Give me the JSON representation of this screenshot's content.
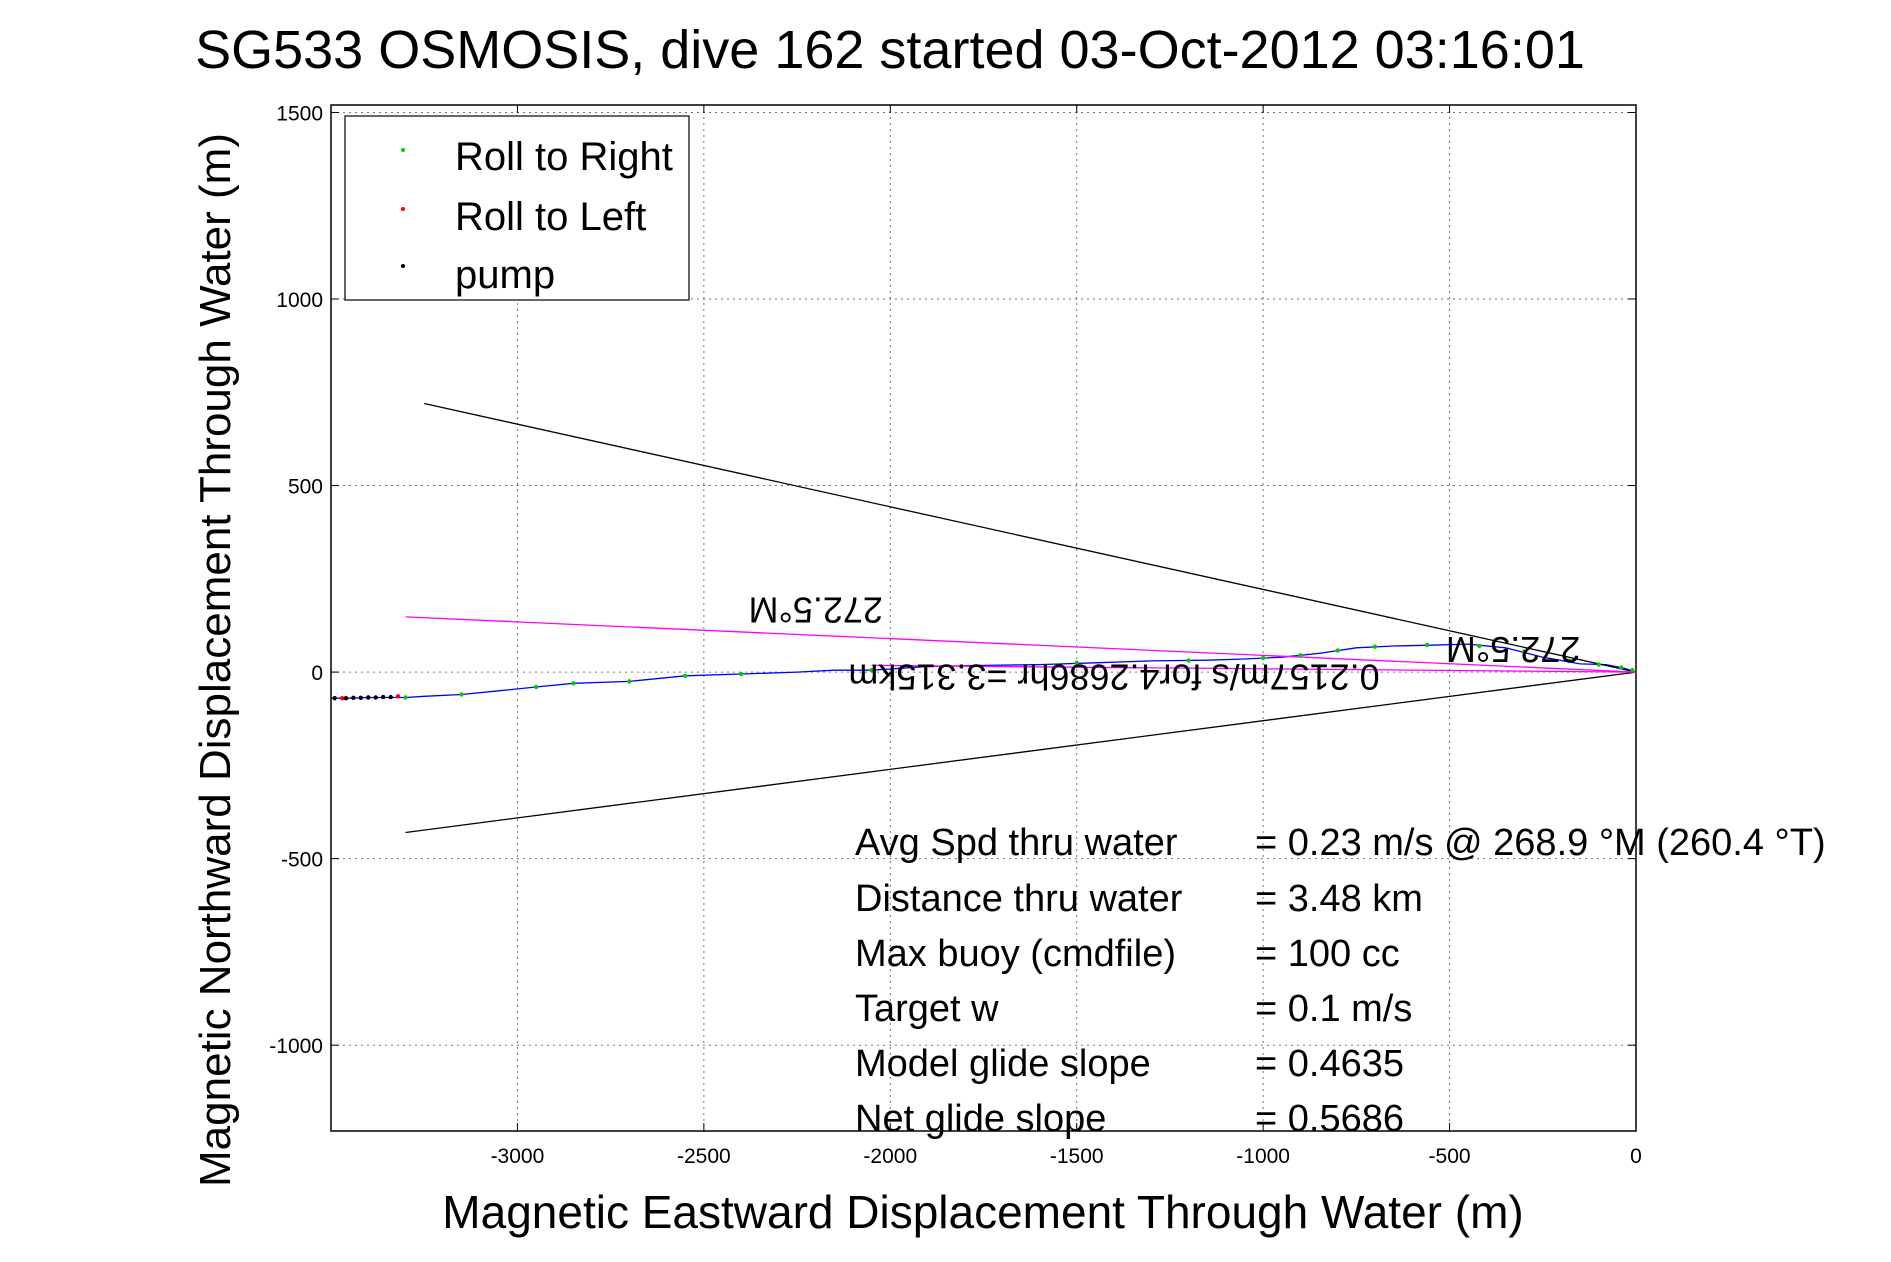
{
  "chart_data": {
    "type": "line",
    "title": "SG533 OSMOSIS, dive 162 started 03-Oct-2012 03:16:01",
    "xlabel": "Magnetic Eastward Displacement Through Water (m)",
    "ylabel": "Magnetic Northward Displacement Through Water (m)",
    "xlim": [
      -3500,
      0
    ],
    "ylim": [
      -1230,
      1520
    ],
    "xticks": [
      -3000,
      -2500,
      -2000,
      -1500,
      -1000,
      -500,
      0
    ],
    "yticks": [
      -1000,
      -500,
      0,
      500,
      1000,
      1500
    ],
    "grid": true,
    "legend_position": "top-left",
    "legend": [
      {
        "label": "Roll to Right",
        "color": "#00cc00"
      },
      {
        "label": "Roll to Left",
        "color": "#ff0000"
      },
      {
        "label": "pump",
        "color": "#000000"
      }
    ],
    "series": [
      {
        "role": "track",
        "color": "#0000ff",
        "x": [
          0,
          -30,
          -80,
          -150,
          -250,
          -350,
          -450,
          -550,
          -650,
          -750,
          -850,
          -950,
          -1050,
          -1150,
          -1300,
          -1450,
          -1600,
          -1750,
          -1900,
          -2050,
          -2150,
          -2250,
          -2400,
          -2550,
          -2700,
          -2850,
          -2950,
          -3050,
          -3150,
          -3250,
          -3300,
          -3350,
          -3400,
          -3450,
          -3500
        ],
        "y": [
          0,
          10,
          20,
          22,
          40,
          65,
          75,
          72,
          70,
          65,
          50,
          40,
          35,
          32,
          30,
          25,
          20,
          18,
          15,
          5,
          5,
          0,
          -5,
          -10,
          -25,
          -30,
          -40,
          -50,
          -60,
          -65,
          -68,
          -68,
          -68,
          -70,
          -70
        ]
      },
      {
        "role": "boundary",
        "color": "#000000",
        "x": [
          0,
          -3250
        ],
        "y": [
          0,
          720
        ]
      },
      {
        "role": "boundary",
        "color": "#000000",
        "x": [
          0,
          -3300
        ],
        "y": [
          0,
          -430
        ]
      },
      {
        "role": "heading",
        "color": "#ff00ff",
        "x": [
          0,
          -3300
        ],
        "y": [
          0,
          148
        ]
      },
      {
        "role": "heading",
        "color": "#ff00ff",
        "x": [
          0,
          -2050
        ],
        "y": [
          0,
          18
        ]
      }
    ],
    "markers": {
      "roll_right": {
        "color": "#00cc00",
        "x": [
          -10,
          -40,
          -100,
          -180,
          -300,
          -420,
          -560,
          -700,
          -800,
          -900,
          -1000,
          -1200,
          -1500,
          -2050,
          -2400,
          -2550,
          -2700,
          -2850,
          -2950,
          -3150,
          -3300
        ],
        "y": [
          5,
          12,
          20,
          30,
          55,
          70,
          73,
          68,
          58,
          45,
          38,
          31,
          25,
          5,
          -5,
          -10,
          -25,
          -30,
          -40,
          -60,
          -68
        ]
      },
      "roll_left": {
        "color": "#ff0000",
        "x": [
          -3470,
          -3400,
          -3320
        ],
        "y": [
          -70,
          -68,
          -65
        ]
      },
      "pump": {
        "color": "#000000",
        "x": [
          -3490,
          -3460,
          -3440,
          -3420,
          -3400,
          -3380,
          -3360,
          -3340
        ],
        "y": [
          -70,
          -70,
          -69,
          -69,
          -68,
          -68,
          -67,
          -67
        ]
      }
    },
    "annotations": [
      {
        "text": "272.5°M",
        "x": -2200,
        "y": 200,
        "rotation": 180
      },
      {
        "text": "272.5°M",
        "x": -330,
        "y": 95,
        "rotation": 180
      },
      {
        "text": "0.2157m/s for4.2686hr =3.315km",
        "x": -1400,
        "y": 20,
        "rotation": 180
      }
    ],
    "stats": [
      {
        "label": "Avg Spd thru water",
        "value": "=  0.23 m/s @ 268.9 °M (260.4 °T)"
      },
      {
        "label": "Distance thru water",
        "value": "=  3.48 km"
      },
      {
        "label": "Max buoy (cmdfile)",
        "value": "= 100 cc"
      },
      {
        "label": "Target w",
        "value": "= 0.1 m/s"
      },
      {
        "label": "Model glide slope",
        "value": "= 0.4635"
      },
      {
        "label": "Net glide slope",
        "value": "= 0.5686"
      }
    ]
  }
}
